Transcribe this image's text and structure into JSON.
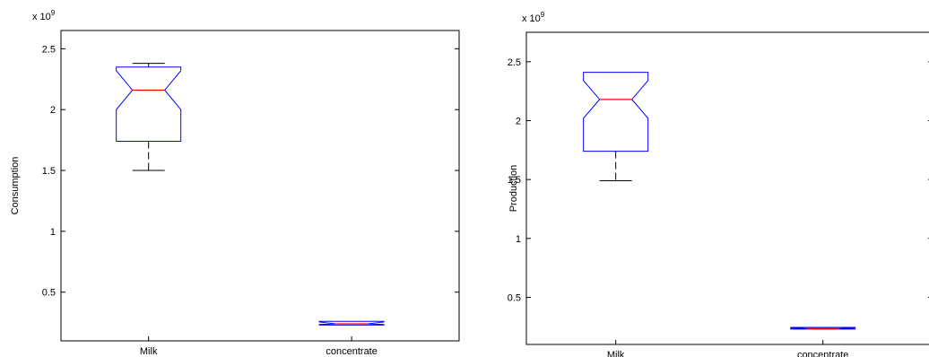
{
  "chart_data": [
    {
      "type": "boxplot",
      "notched": true,
      "title": "",
      "xlabel": "",
      "ylabel": "Consumption",
      "exponent_label": "x 10^9",
      "ylim": [
        0.1,
        2.65
      ],
      "yticks": [
        0.5,
        1,
        1.5,
        2,
        2.5
      ],
      "ytick_labels": [
        "0.5",
        "1",
        "1.5",
        "2",
        "2.5"
      ],
      "categories": [
        "Milk",
        "concentrate"
      ],
      "boxes": [
        {
          "category": "Milk",
          "min": 1.5,
          "q1": 1.74,
          "median": 2.16,
          "q3": 2.35,
          "max": 2.38,
          "notch_low": 2.0,
          "notch_high": 2.32
        },
        {
          "category": "concentrate",
          "min": 0.23,
          "q1": 0.23,
          "median": 0.24,
          "q3": 0.26,
          "max": 0.26,
          "notch_low": 0.235,
          "notch_high": 0.255
        }
      ],
      "colors": {
        "box": "#0000ff",
        "median": "#ff0000",
        "whisker": "#000000"
      }
    },
    {
      "type": "boxplot",
      "notched": true,
      "title": "",
      "xlabel": "",
      "ylabel": "Production",
      "exponent_label": "x 10^9",
      "ylim": [
        0.1,
        2.75
      ],
      "yticks": [
        0.5,
        1,
        1.5,
        2,
        2.5
      ],
      "ytick_labels": [
        "0.5",
        "1",
        "1.5",
        "2",
        "2.5"
      ],
      "categories": [
        "Milk",
        "concentrate"
      ],
      "boxes": [
        {
          "category": "Milk",
          "min": 1.49,
          "q1": 1.74,
          "median": 2.18,
          "q3": 2.41,
          "max": 2.41,
          "notch_low": 2.02,
          "notch_high": 2.34
        },
        {
          "category": "concentrate",
          "min": 0.23,
          "q1": 0.23,
          "median": 0.235,
          "q3": 0.245,
          "max": 0.245,
          "notch_low": 0.232,
          "notch_high": 0.242
        }
      ],
      "colors": {
        "box": "#0000ff",
        "median": "#ff0000",
        "whisker": "#000000"
      }
    }
  ]
}
